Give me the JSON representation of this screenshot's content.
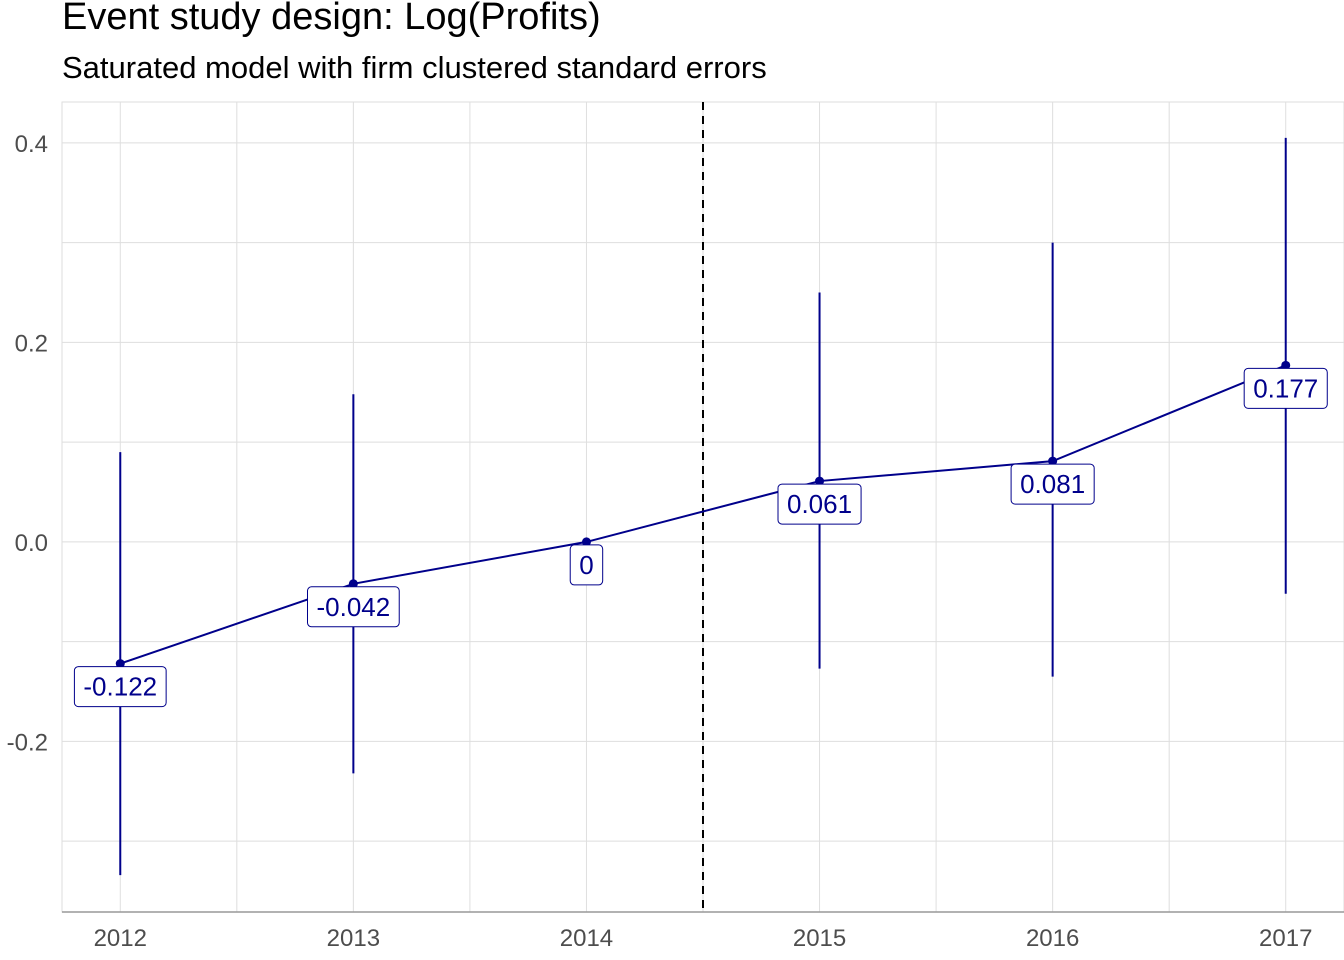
{
  "chart_data": {
    "type": "line",
    "title": "Event study design: Log(Profits)",
    "subtitle": "Saturated model with firm clustered standard errors",
    "xlabel": "",
    "ylabel": "",
    "x": [
      2012,
      2013,
      2014,
      2015,
      2016,
      2017
    ],
    "series": [
      {
        "values": [
          -0.122,
          -0.042,
          0,
          0.061,
          0.081,
          0.177
        ],
        "ci_lower": [
          -0.334,
          -0.232,
          0,
          -0.127,
          -0.135,
          -0.052
        ],
        "ci_upper": [
          0.09,
          0.148,
          0,
          0.25,
          0.3,
          0.405
        ],
        "labels": [
          "-0.122",
          "-0.042",
          "0",
          "0.061",
          "0.081",
          "0.177"
        ]
      }
    ],
    "x_ticks": [
      "2012",
      "2013",
      "2014",
      "2015",
      "2016",
      "2017"
    ],
    "y_ticks": [
      "-0.2",
      "0.0",
      "0.2",
      "0.4"
    ],
    "y_tick_values": [
      -0.2,
      0,
      0.2,
      0.4
    ],
    "xlim": [
      2011.75,
      2017.25
    ],
    "ylim": [
      -0.371,
      0.441
    ],
    "reference_line_x": 2014.5,
    "grid": true,
    "colors": {
      "series": "#00008b",
      "grid": "#dedede",
      "axis": "#4d4d4d",
      "reference": "#000000"
    }
  }
}
